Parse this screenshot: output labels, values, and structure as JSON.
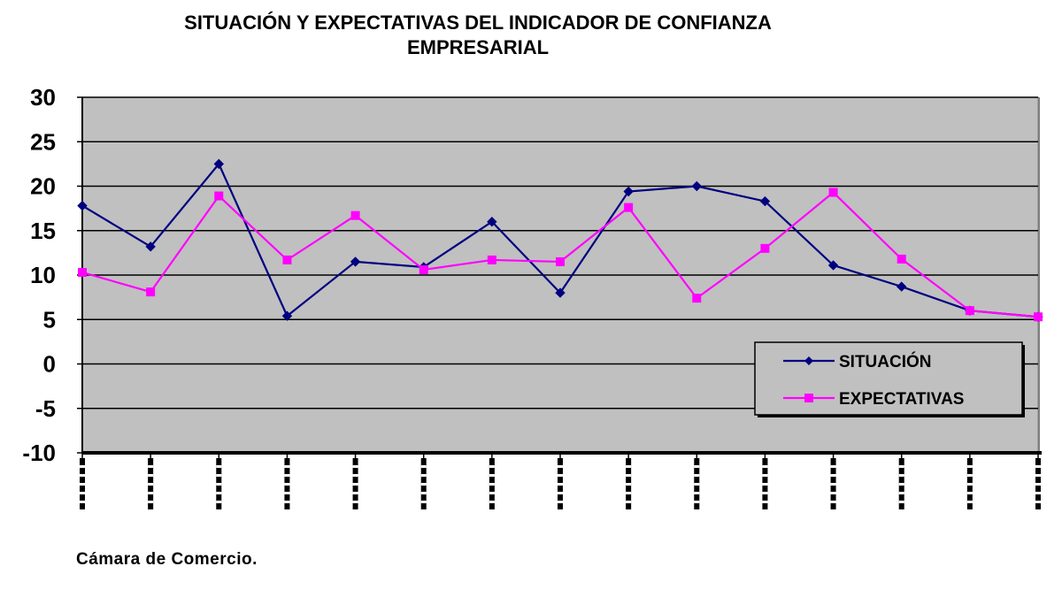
{
  "chart_data": {
    "type": "line",
    "title_lines": [
      "SITUACIÓN  Y EXPECTATIVAS  DEL INDICADOR  DE CONFIANZA",
      "EMPRESARIAL"
    ],
    "xlabel": "",
    "ylabel": "",
    "ylim": [
      -10,
      30
    ],
    "yticks": [
      30,
      25,
      20,
      15,
      10,
      5,
      0,
      -5,
      -10
    ],
    "grid": true,
    "legend_position": "lower-right",
    "x": [
      1,
      2,
      3,
      4,
      5,
      6,
      7,
      8,
      9,
      10,
      11,
      12,
      13,
      14,
      15
    ],
    "series": [
      {
        "name": "SITUACIÓN",
        "color": "#000080",
        "marker": "diamond",
        "values": [
          17.8,
          13.2,
          22.5,
          5.4,
          11.5,
          10.9,
          16.0,
          8.0,
          19.4,
          20.0,
          18.3,
          11.1,
          8.7,
          6.0,
          5.3
        ]
      },
      {
        "name": "EXPECTATIVAS",
        "color": "#ff00ff",
        "marker": "square",
        "values": [
          10.3,
          8.1,
          18.9,
          11.7,
          16.7,
          10.6,
          11.7,
          11.5,
          17.6,
          7.4,
          13.0,
          19.3,
          11.8,
          6.0,
          5.3
        ]
      }
    ],
    "plot_background": "#c0c0c0",
    "gridline_color": "#000000"
  },
  "source": "Cámara de Comercio."
}
